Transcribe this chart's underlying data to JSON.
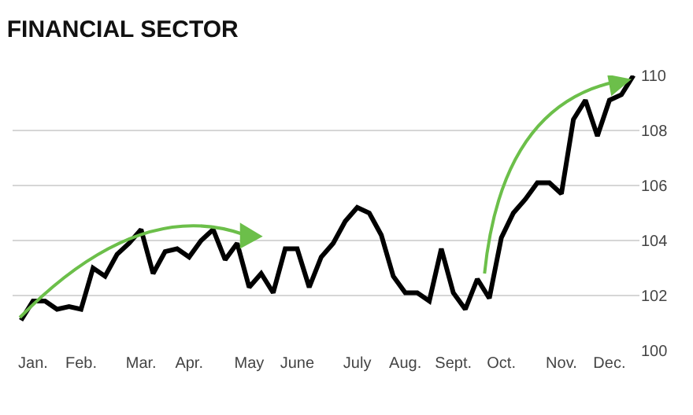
{
  "chart_data": {
    "type": "line",
    "title": "FINANCIAL SECTOR",
    "categories": [
      null,
      "Jan.",
      null,
      null,
      null,
      "Feb.",
      null,
      null,
      null,
      null,
      "Mar.",
      null,
      null,
      null,
      "Apr.",
      null,
      null,
      null,
      null,
      "May",
      null,
      null,
      null,
      "June",
      null,
      null,
      null,
      null,
      "July",
      null,
      null,
      null,
      "Aug.",
      null,
      null,
      null,
      "Sept.",
      null,
      null,
      null,
      "Oct.",
      null,
      null,
      null,
      null,
      "Nov.",
      null,
      null,
      null,
      "Dec.",
      null,
      null
    ],
    "series": [
      {
        "color": "#000000",
        "values": [
          101.1,
          101.8,
          101.8,
          101.5,
          101.6,
          101.5,
          103.0,
          102.7,
          103.5,
          103.9,
          104.4,
          102.8,
          103.6,
          103.7,
          103.4,
          104.0,
          104.4,
          103.3,
          103.9,
          102.3,
          102.8,
          102.1,
          103.7,
          103.7,
          102.3,
          103.4,
          103.9,
          104.7,
          105.2,
          105.0,
          104.2,
          102.7,
          102.1,
          102.1,
          101.8,
          103.7,
          102.1,
          101.5,
          102.6,
          101.9,
          104.1,
          105.0,
          105.5,
          106.1,
          106.1,
          105.7,
          108.4,
          109.1,
          107.8,
          109.1,
          109.3,
          110.0
        ]
      }
    ],
    "ylim": [
      100,
      110
    ],
    "yticks": [
      100,
      102,
      104,
      106,
      108,
      110
    ],
    "grid": "y",
    "marker": "none",
    "line_style": "solid",
    "legend": false
  }
}
